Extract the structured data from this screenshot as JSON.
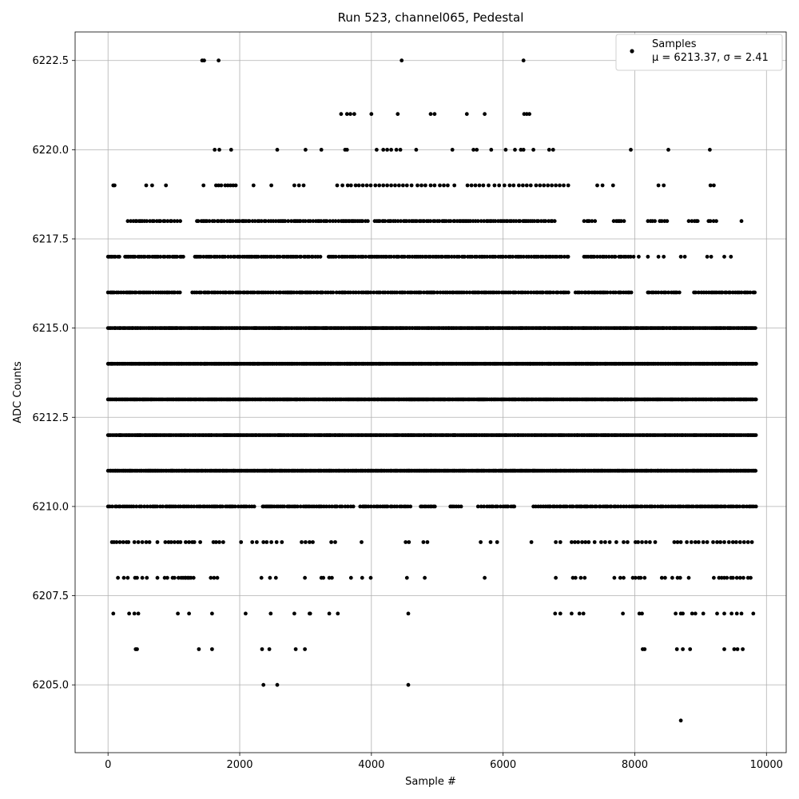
{
  "chart_data": {
    "type": "scatter",
    "title": "Run 523, channel065, Pedestal",
    "xlabel": "Sample #",
    "ylabel": "ADC Counts",
    "xlim": [
      -500,
      10300
    ],
    "ylim": [
      6203.1,
      6223.3
    ],
    "xticks": [
      0,
      2000,
      4000,
      6000,
      8000,
      10000
    ],
    "xtick_labels": [
      "0",
      "2000",
      "4000",
      "6000",
      "8000",
      "10000"
    ],
    "yticks": [
      6205.0,
      6207.5,
      6210.0,
      6212.5,
      6215.0,
      6217.5,
      6220.0,
      6222.5
    ],
    "ytick_labels": [
      "6205.0",
      "6207.5",
      "6210.0",
      "6212.5",
      "6215.0",
      "6217.5",
      "6220.0",
      "6222.5"
    ],
    "grid": true,
    "legend": {
      "position": "top-right",
      "entries": [
        {
          "label": "Samples",
          "stats": "μ = 6213.37, σ = 2.41",
          "marker_color": "#000000"
        }
      ]
    },
    "series": [
      {
        "name": "Samples",
        "color": "#000000",
        "n_samples": 9850,
        "mean": 6213.37,
        "sigma": 2.41,
        "note": "Dense samples (~9850 points) on integer ADC levels 6211–6215; sparser occupancy at the listed levels below.",
        "dense_levels": [
          6211,
          6212,
          6213,
          6214,
          6215
        ],
        "dense_x_range": [
          0,
          9850
        ],
        "level_points": {
          "6204": [
            8700
          ],
          "6205": [
            2360,
            2570,
            4560
          ],
          "6206": [
            420,
            440,
            1380,
            1580,
            2340,
            2450,
            2850,
            2990,
            8120,
            8150,
            8640,
            8730,
            8840,
            9360,
            9510,
            9560,
            9640
          ],
          "6207": [
            80,
            320,
            400,
            460,
            1060,
            1230,
            1580,
            2090,
            2470,
            2830,
            3060,
            3070,
            3360,
            3490,
            4560,
            6790,
            6870,
            7040,
            7160,
            7220,
            7820,
            8070,
            8110,
            8620,
            8700,
            8730,
            8870,
            8920,
            9040,
            9250,
            9360,
            9470,
            9550,
            9620,
            9800
          ],
          "6208": [
            150,
            240,
            300,
            410,
            440,
            520,
            590,
            750,
            860,
            900,
            980,
            1010,
            1070,
            1110,
            1140,
            1170,
            1180,
            1210,
            1230,
            1260,
            1300,
            1560,
            1610,
            1660,
            2330,
            2460,
            2550,
            2990,
            3240,
            3270,
            3360,
            3400,
            3690,
            3860,
            3990,
            4540,
            4810,
            5720,
            6800,
            7060,
            7100,
            7180,
            7240,
            7690,
            7780,
            7830,
            7970,
            8010,
            8060,
            8090,
            8150,
            8410,
            8460,
            8570,
            8650,
            8690,
            8820,
            9200,
            9280,
            9320,
            9360,
            9400,
            9460,
            9490,
            9550,
            9600,
            9650,
            9720,
            9760
          ],
          "6209": [
            60,
            90,
            130,
            180,
            230,
            280,
            310,
            400,
            460,
            520,
            580,
            630,
            750,
            870,
            920,
            960,
            1010,
            1060,
            1100,
            1180,
            1230,
            1280,
            1310,
            1400,
            1600,
            1640,
            1690,
            1750,
            2020,
            2190,
            2260,
            2360,
            2410,
            2480,
            2560,
            2640,
            2940,
            3000,
            3060,
            3110,
            3390,
            3450,
            3850,
            4520,
            4570,
            4790,
            4850,
            5660,
            5810,
            5910,
            6430,
            6800,
            6870,
            7040,
            7090,
            7140,
            7200,
            7250,
            7300,
            7390,
            7490,
            7550,
            7620,
            7720,
            7830,
            7890,
            8010,
            8050,
            8110,
            8170,
            8230,
            8310,
            8600,
            8650,
            8700,
            8790,
            8860,
            8920,
            8970,
            9040,
            9100,
            9190,
            9250,
            9300,
            9360,
            9430,
            9490,
            9540,
            9600,
            9660,
            9720,
            9780
          ]
        },
        "level_segments": {
          "6210": [
            [
              0,
              2230
            ],
            [
              2350,
              3740
            ],
            [
              3830,
              4620
            ],
            [
              4750,
              4980
            ],
            [
              5200,
              5400
            ],
            [
              5620,
              6180
            ],
            [
              6460,
              9850
            ]
          ],
          "6216": [
            [
              0,
              1100
            ],
            [
              1280,
              3450
            ],
            [
              3470,
              7000
            ],
            [
              7100,
              7950
            ],
            [
              8200,
              8720
            ],
            [
              8900,
              9850
            ]
          ],
          "6217": [
            [
              0,
              200
            ],
            [
              260,
              1160
            ],
            [
              1320,
              3250
            ],
            [
              3350,
              7000
            ],
            [
              7230,
              7720
            ],
            [
              7760,
              7990
            ]
          ],
          "6218": [
            [
              300,
              1100
            ],
            [
              1350,
              3950
            ],
            [
              4050,
              6800
            ],
            [
              7230,
              7400
            ],
            [
              7680,
              7850
            ],
            [
              8200,
              8320
            ],
            [
              8380,
              8500
            ],
            [
              8820,
              8980
            ],
            [
              9120,
              9240
            ]
          ]
        },
        "sparse_levels": {
          "6217": [
            8060,
            8200,
            8360,
            8440,
            8700,
            8760,
            9100,
            9160,
            9360,
            9460
          ],
          "6218": [
            9620
          ],
          "6219": [
            80,
            100,
            580,
            670,
            880,
            1450,
            1640,
            1680,
            1720,
            1780,
            1820,
            1860,
            1900,
            1940,
            2210,
            2480,
            2830,
            2900,
            2970,
            3480,
            3560,
            3640,
            3690,
            3760,
            3810,
            3870,
            3930,
            3990,
            4060,
            4120,
            4180,
            4240,
            4300,
            4360,
            4420,
            4480,
            4540,
            4610,
            4700,
            4760,
            4820,
            4900,
            4960,
            5040,
            5100,
            5160,
            5260,
            5460,
            5520,
            5580,
            5640,
            5700,
            5780,
            5870,
            5940,
            6020,
            6100,
            6160,
            6240,
            6300,
            6360,
            6420,
            6500,
            6560,
            6620,
            6680,
            6740,
            6800,
            6860,
            6920,
            6990,
            7430,
            7510,
            7670,
            8360,
            8440,
            9150,
            9200
          ],
          "6220": [
            1620,
            1690,
            1870,
            2570,
            3000,
            3240,
            3600,
            3630,
            4080,
            4180,
            4240,
            4300,
            4380,
            4440,
            4680,
            5230,
            5550,
            5600,
            5820,
            6040,
            6180,
            6270,
            6310,
            6460,
            6700,
            6760,
            7940,
            8510,
            9140
          ],
          "6221": [
            3540,
            3630,
            3680,
            3740,
            4000,
            4400,
            4900,
            4960,
            5450,
            5720,
            6320,
            6360,
            6400
          ],
          "6222.5": [
            1430,
            1460,
            1680,
            4460,
            6310
          ]
        }
      }
    ]
  }
}
